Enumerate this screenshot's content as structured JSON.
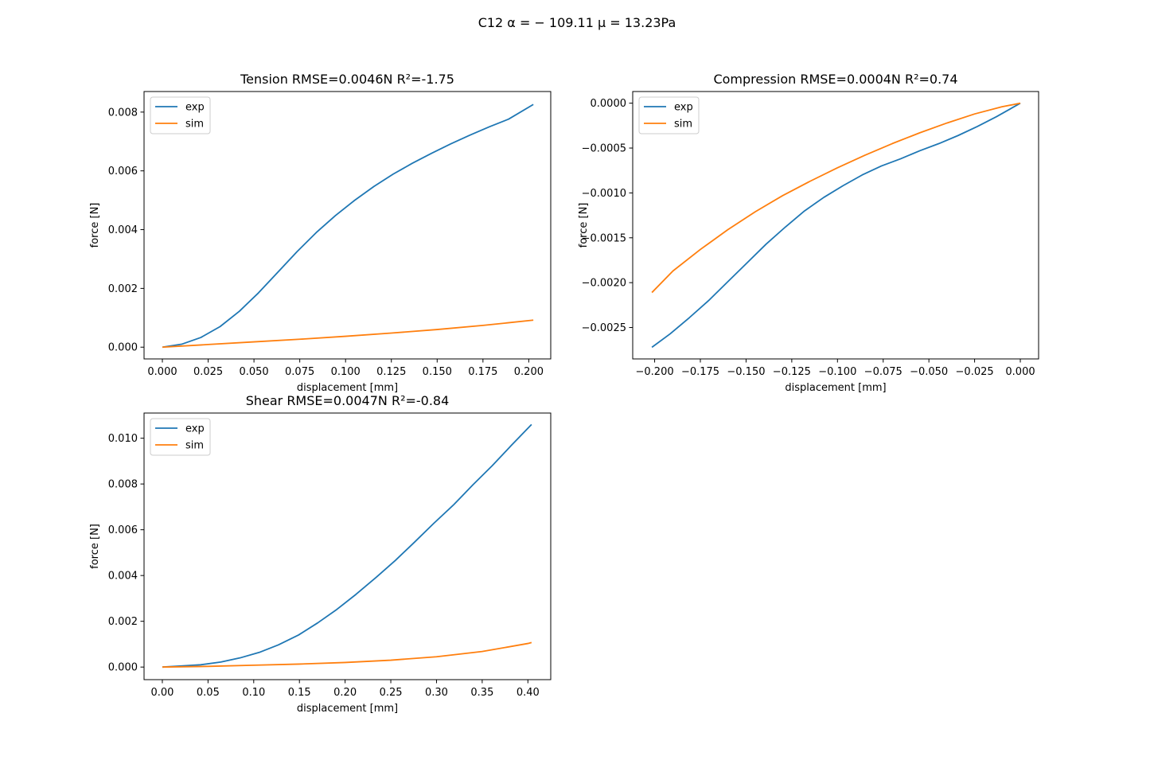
{
  "figure": {
    "suptitle": "C12 α = − 109.11 μ = 13.23Pa"
  },
  "chart_data": [
    {
      "type": "line",
      "title": "Tension RMSE=0.0046N R²=-1.75",
      "xlabel": "displacement [mm]",
      "ylabel": "force [N]",
      "xlim": [
        -0.01,
        0.212
      ],
      "ylim": [
        -0.0004,
        0.0087
      ],
      "xticks": [
        0.0,
        0.025,
        0.05,
        0.075,
        0.1,
        0.125,
        0.15,
        0.175,
        0.2
      ],
      "xtick_labels": [
        "0.000",
        "0.025",
        "0.050",
        "0.075",
        "0.100",
        "0.125",
        "0.150",
        "0.175",
        "0.200"
      ],
      "yticks": [
        0.0,
        0.002,
        0.004,
        0.006,
        0.008
      ],
      "ytick_labels": [
        "0.000",
        "0.002",
        "0.004",
        "0.006",
        "0.008"
      ],
      "legend": "top-left",
      "grid": false,
      "series": [
        {
          "name": "exp",
          "color": "#1f77b4",
          "x": [
            0.0,
            0.0105,
            0.021,
            0.0315,
            0.042,
            0.0525,
            0.063,
            0.0735,
            0.084,
            0.0945,
            0.105,
            0.1155,
            0.126,
            0.1365,
            0.147,
            0.1575,
            0.168,
            0.1785,
            0.189,
            0.2025
          ],
          "y": [
            0.0,
            0.0001,
            0.00033,
            0.0007,
            0.00122,
            0.00185,
            0.00255,
            0.00325,
            0.0039,
            0.00448,
            0.005,
            0.00547,
            0.00589,
            0.00626,
            0.0066,
            0.00692,
            0.00722,
            0.0075,
            0.00776,
            0.00826
          ]
        },
        {
          "name": "sim",
          "color": "#ff7f0e",
          "x": [
            0.0,
            0.025,
            0.05,
            0.075,
            0.1,
            0.125,
            0.15,
            0.175,
            0.2025
          ],
          "y": [
            0.0,
            9e-05,
            0.00018,
            0.00027,
            0.00037,
            0.00048,
            0.0006,
            0.00074,
            0.00092
          ]
        }
      ]
    },
    {
      "type": "line",
      "title": "Compression RMSE=0.0004N R²=0.74",
      "xlabel": "displacement [mm]",
      "ylabel": "force [N]",
      "xlim": [
        -0.212,
        0.01
      ],
      "ylim": [
        -0.00285,
        0.00013
      ],
      "xticks": [
        -0.2,
        -0.175,
        -0.15,
        -0.125,
        -0.1,
        -0.075,
        -0.05,
        -0.025,
        0.0
      ],
      "xtick_labels": [
        "−0.200",
        "−0.175",
        "−0.150",
        "−0.125",
        "−0.100",
        "−0.075",
        "−0.050",
        "−0.025",
        "0.000"
      ],
      "yticks": [
        0.0,
        -0.0005,
        -0.001,
        -0.0015,
        -0.002,
        -0.0025
      ],
      "ytick_labels": [
        "0.0000",
        "−0.0005",
        "−0.0010",
        "−0.0015",
        "−0.0020",
        "−0.0025"
      ],
      "legend": "top-left",
      "grid": false,
      "series": [
        {
          "name": "exp",
          "color": "#1f77b4",
          "x": [
            -0.2015,
            -0.1915,
            -0.181,
            -0.1705,
            -0.16,
            -0.1495,
            -0.139,
            -0.1285,
            -0.118,
            -0.1075,
            -0.097,
            -0.0865,
            -0.076,
            -0.0655,
            -0.055,
            -0.0445,
            -0.034,
            -0.0235,
            -0.013,
            0.0
          ],
          "y": [
            -0.00272,
            -0.00257,
            -0.00239,
            -0.0022,
            -0.00199,
            -0.00178,
            -0.00157,
            -0.00138,
            -0.0012,
            -0.00105,
            -0.00092,
            -0.0008,
            -0.0007,
            -0.00062,
            -0.00053,
            -0.00045,
            -0.00036,
            -0.00026,
            -0.00015,
            0.0
          ]
        },
        {
          "name": "sim",
          "color": "#ff7f0e",
          "x": [
            -0.2015,
            -0.19,
            -0.175,
            -0.16,
            -0.145,
            -0.13,
            -0.115,
            -0.1,
            -0.085,
            -0.07,
            -0.055,
            -0.04,
            -0.025,
            -0.01,
            0.0
          ],
          "y": [
            -0.00211,
            -0.00187,
            -0.00163,
            -0.00141,
            -0.00121,
            -0.00103,
            -0.00087,
            -0.00072,
            -0.00058,
            -0.00045,
            -0.00033,
            -0.00022,
            -0.00012,
            -4e-05,
            0.0
          ]
        }
      ]
    },
    {
      "type": "line",
      "title": "Shear RMSE=0.0047N R²=-0.84",
      "xlabel": "displacement [mm]",
      "ylabel": "force [N]",
      "xlim": [
        -0.02,
        0.425
      ],
      "ylim": [
        -0.00055,
        0.0111
      ],
      "xticks": [
        0.0,
        0.05,
        0.1,
        0.15,
        0.2,
        0.25,
        0.3,
        0.35,
        0.4
      ],
      "xtick_labels": [
        "0.00",
        "0.05",
        "0.10",
        "0.15",
        "0.20",
        "0.25",
        "0.30",
        "0.35",
        "0.40"
      ],
      "yticks": [
        0.0,
        0.002,
        0.004,
        0.006,
        0.008,
        0.01
      ],
      "ytick_labels": [
        "0.000",
        "0.002",
        "0.004",
        "0.006",
        "0.008",
        "0.010"
      ],
      "legend": "top-left",
      "grid": false,
      "series": [
        {
          "name": "exp",
          "color": "#1f77b4",
          "x": [
            0.0,
            0.021,
            0.042,
            0.064,
            0.085,
            0.106,
            0.127,
            0.149,
            0.17,
            0.191,
            0.212,
            0.234,
            0.255,
            0.276,
            0.297,
            0.319,
            0.34,
            0.361,
            0.382,
            0.404
          ],
          "y": [
            0.0,
            5e-05,
            0.0001,
            0.00022,
            0.0004,
            0.00064,
            0.00097,
            0.0014,
            0.00193,
            0.00252,
            0.00318,
            0.00392,
            0.00466,
            0.00546,
            0.00628,
            0.0071,
            0.00797,
            0.0088,
            0.00969,
            0.0106
          ]
        },
        {
          "name": "sim",
          "color": "#ff7f0e",
          "x": [
            0.0,
            0.05,
            0.1,
            0.15,
            0.2,
            0.25,
            0.3,
            0.35,
            0.4,
            0.404
          ],
          "y": [
            0.0,
            3e-05,
            8e-05,
            0.00013,
            0.0002,
            0.0003,
            0.00045,
            0.00068,
            0.00103,
            0.00107
          ]
        }
      ]
    }
  ]
}
